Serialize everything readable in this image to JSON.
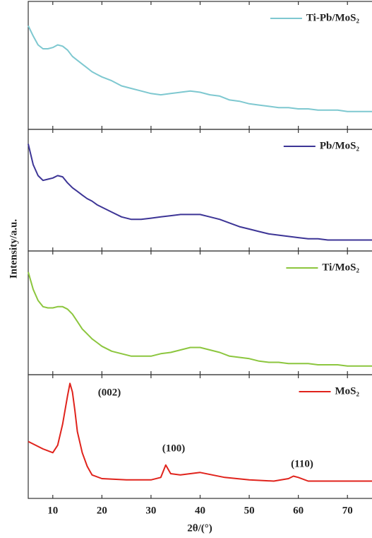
{
  "chart_data": [
    {
      "type": "line",
      "x": [
        5,
        6,
        7,
        8,
        9,
        10,
        11,
        12,
        13,
        14,
        15,
        16,
        17,
        18,
        19,
        20,
        22,
        24,
        26,
        28,
        30,
        32,
        34,
        36,
        38,
        40,
        42,
        44,
        46,
        48,
        50,
        52,
        54,
        56,
        58,
        60,
        62,
        64,
        66,
        68,
        70,
        72,
        75
      ],
      "series": [
        {
          "name": "Ti-Pb/MoS₂",
          "color": "#7ec8d0",
          "values": [
            81,
            73,
            66,
            63,
            63,
            64,
            66,
            65,
            62,
            57,
            54,
            51,
            48,
            45,
            43,
            41,
            38,
            34,
            32,
            30,
            28,
            27,
            28,
            29,
            30,
            29,
            27,
            26,
            23,
            22,
            20,
            19,
            18,
            17,
            17,
            16,
            16,
            15,
            15,
            15,
            14,
            14,
            14
          ]
        }
      ],
      "xlim": [
        5,
        75
      ],
      "ylim": [
        0,
        100
      ],
      "xticks": [
        10,
        20,
        30,
        40,
        50,
        60,
        70
      ]
    },
    {
      "type": "line",
      "x": [
        5,
        6,
        7,
        8,
        9,
        10,
        11,
        12,
        13,
        14,
        15,
        16,
        17,
        18,
        19,
        20,
        22,
        24,
        26,
        28,
        30,
        32,
        34,
        36,
        38,
        40,
        42,
        44,
        46,
        48,
        50,
        52,
        54,
        56,
        58,
        60,
        62,
        64,
        66,
        68,
        70,
        72,
        75
      ],
      "series": [
        {
          "name": "Pb/MoS₂",
          "color": "#3d3596",
          "values": [
            88,
            71,
            62,
            58,
            59,
            60,
            62,
            61,
            56,
            52,
            49,
            46,
            43,
            41,
            38,
            36,
            32,
            28,
            26,
            26,
            27,
            28,
            29,
            30,
            30,
            30,
            28,
            26,
            23,
            20,
            18,
            16,
            14,
            13,
            12,
            11,
            10,
            10,
            9,
            9,
            9,
            9,
            9
          ]
        }
      ],
      "xlim": [
        5,
        75
      ],
      "ylim": [
        0,
        100
      ],
      "xticks": [
        10,
        20,
        30,
        40,
        50,
        60,
        70
      ]
    },
    {
      "type": "line",
      "x": [
        5,
        6,
        7,
        8,
        9,
        10,
        11,
        12,
        13,
        14,
        15,
        16,
        17,
        18,
        19,
        20,
        22,
        24,
        26,
        28,
        30,
        32,
        34,
        36,
        38,
        40,
        42,
        44,
        46,
        48,
        50,
        52,
        54,
        56,
        58,
        60,
        62,
        64,
        66,
        68,
        70,
        72,
        75
      ],
      "series": [
        {
          "name": "Ti/MoS₂",
          "color": "#8cc63e",
          "values": [
            83,
            69,
            60,
            55,
            54,
            54,
            55,
            55,
            53,
            49,
            43,
            37,
            33,
            29,
            26,
            23,
            19,
            17,
            15,
            15,
            15,
            17,
            18,
            20,
            22,
            22,
            20,
            18,
            15,
            14,
            13,
            11,
            10,
            10,
            9,
            9,
            9,
            8,
            8,
            8,
            7,
            7,
            7
          ]
        }
      ],
      "xlim": [
        5,
        75
      ],
      "ylim": [
        0,
        100
      ],
      "xticks": [
        10,
        20,
        30,
        40,
        50,
        60,
        70
      ]
    },
    {
      "type": "line",
      "x": [
        5,
        8,
        10,
        11,
        12,
        13,
        13.5,
        14,
        14.5,
        15,
        16,
        17,
        18,
        20,
        25,
        30,
        32,
        33,
        34,
        36,
        40,
        45,
        50,
        55,
        58,
        59,
        60,
        62,
        70,
        75
      ],
      "series": [
        {
          "name": "MoS₂",
          "color": "#e0231c",
          "values": [
            46,
            40,
            37,
            43,
            60,
            83,
            93,
            86,
            71,
            54,
            37,
            26,
            19,
            16,
            15,
            15,
            17,
            27,
            20,
            19,
            21,
            17,
            15,
            14,
            16,
            18,
            17,
            14,
            14,
            14
          ]
        }
      ],
      "xlim": [
        5,
        75
      ],
      "ylim": [
        0,
        100
      ],
      "xticks": [
        10,
        20,
        30,
        40,
        50,
        60,
        70
      ],
      "annotations": [
        "(002)",
        "(100)",
        "(110)"
      ],
      "xlabel": "2θ/(°)",
      "ylabel": "Intensity/a.u."
    }
  ]
}
